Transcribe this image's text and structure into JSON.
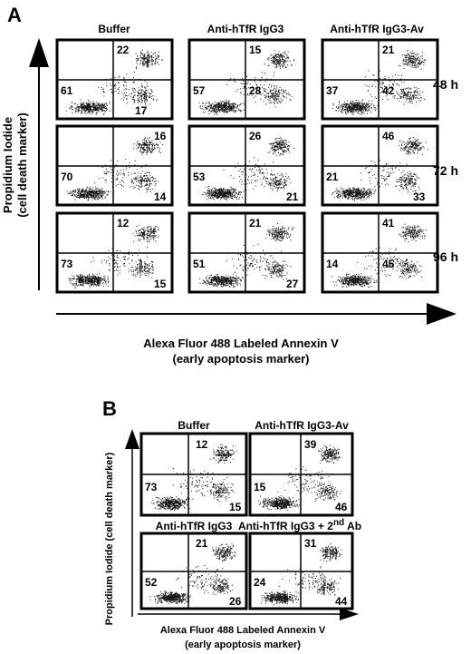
{
  "panelA": {
    "letter": "A",
    "columns": [
      "Buffer",
      "Anti-hTfR IgG3",
      "Anti-hTfR IgG3-Av"
    ],
    "rows": [
      "48 h",
      "72 h",
      "96 h"
    ],
    "y_label_line1": "Propidium Iodide",
    "y_label_line2": "(cell death marker)",
    "x_label_line1": "Alexa Fluor 488 Labeled Annexin V",
    "x_label_line2": "(early apoptosis marker)",
    "plots": [
      [
        {
          "ur": "22",
          "ul": "61",
          "lr": "17"
        },
        {
          "ur": "15",
          "ul": "57",
          "lr": "28"
        },
        {
          "ur": "21",
          "ul": "37",
          "lr": "42"
        }
      ],
      [
        {
          "ur": "16",
          "ul": "70",
          "lr": "14"
        },
        {
          "ur": "26",
          "ul": "53",
          "lr": "21"
        },
        {
          "ur": "46",
          "ul": "21",
          "lr": "33"
        }
      ],
      [
        {
          "ur": "12",
          "ul": "73",
          "lr": "15"
        },
        {
          "ur": "21",
          "ul": "51",
          "lr": "27"
        },
        {
          "ur": "41",
          "ul": "14",
          "lr": "45"
        }
      ]
    ]
  },
  "panelB": {
    "letter": "B",
    "titles": [
      "Buffer",
      "Anti-hTfR IgG3-Av",
      "Anti-hTfR IgG3",
      "Anti-hTfR IgG3 + 2",
      "nd",
      " Ab"
    ],
    "y_label": "Propidium Iodide (cell death marker)",
    "x_label_line1": "Alexa Fluor 488 Labeled Annexin V",
    "x_label_line2": "(early apoptosis marker)",
    "plots": [
      {
        "ur": "12",
        "ul": "73",
        "lr": "15"
      },
      {
        "ur": "39",
        "ul": "15",
        "lr": "46"
      },
      {
        "ur": "21",
        "ul": "52",
        "lr": "26"
      },
      {
        "ur": "31",
        "ul": "24",
        "lr": "44"
      }
    ]
  }
}
